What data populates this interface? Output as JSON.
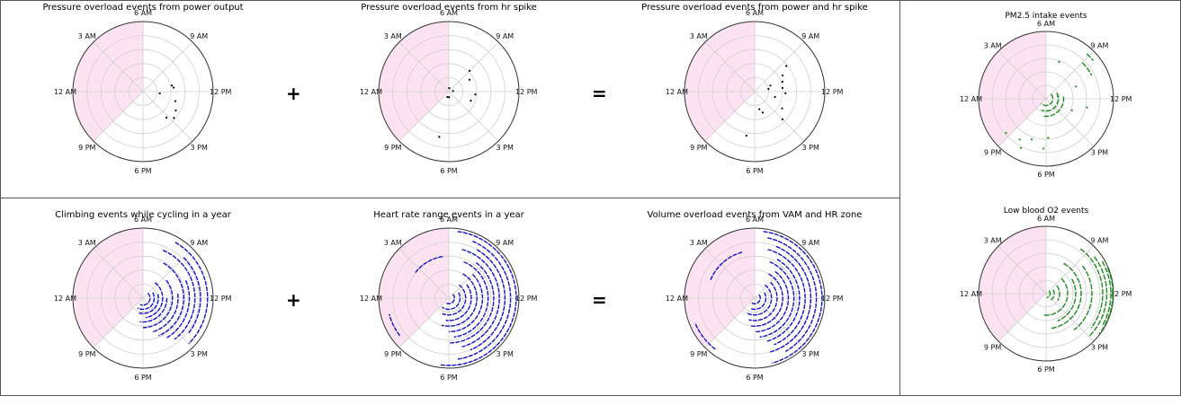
{
  "colors": {
    "shade": "#fde3f1",
    "grid": "#cfcfcf",
    "blackSeries": "#000000",
    "blueSeries": "#1010c8",
    "greenSeries": "#1f8a1f"
  },
  "operators": {
    "plus": "+",
    "equals": "="
  },
  "chart_data": [
    {
      "type": "scatter",
      "title": "Pressure overload events from power output",
      "angular_ticks": [
        "6 AM",
        "3 AM",
        "12 AM",
        "9 PM",
        "6 PM",
        "3 PM",
        "12 PM",
        "9 AM"
      ],
      "r_max": 5,
      "shaded_sector_hours": [
        21,
        30
      ],
      "color": "#000000",
      "points": [
        [
          11.2,
          2.1
        ],
        [
          11.5,
          2.2
        ],
        [
          14.0,
          2.7
        ],
        [
          14.7,
          2.9
        ],
        [
          15.2,
          2.5
        ],
        [
          13.1,
          2.4
        ],
        [
          12.4,
          1.2
        ]
      ]
    },
    {
      "type": "scatter",
      "title": "Pressure overload events from hr spike",
      "angular_ticks": [
        "6 AM",
        "3 AM",
        "12 AM",
        "9 PM",
        "6 PM",
        "3 PM",
        "12 PM",
        "9 AM"
      ],
      "r_max": 5,
      "shaded_sector_hours": [
        21,
        30
      ],
      "color": "#000000",
      "points": [
        [
          9.0,
          2.1
        ],
        [
          10.0,
          1.7
        ],
        [
          12.4,
          1.9
        ],
        [
          13.5,
          1.7
        ],
        [
          18.8,
          3.3
        ],
        [
          17.8,
          0.4
        ],
        [
          11.5,
          0.3
        ],
        [
          19.0,
          0.4
        ],
        [
          6.5,
          0.25
        ]
      ]
    },
    {
      "type": "scatter",
      "title": "Pressure overload events from power and hr spike",
      "angular_ticks": [
        "6 AM",
        "3 AM",
        "12 AM",
        "9 PM",
        "6 PM",
        "3 PM",
        "12 PM",
        "9 AM"
      ],
      "r_max": 5,
      "shaded_sector_hours": [
        21,
        30
      ],
      "color": "#000000",
      "points": [
        [
          9.4,
          2.9
        ],
        [
          10.0,
          2.3
        ],
        [
          10.7,
          2.1
        ],
        [
          11.5,
          2.0
        ],
        [
          12.2,
          2.2
        ],
        [
          13.0,
          1.5
        ],
        [
          14.1,
          2.3
        ],
        [
          15.0,
          2.8
        ],
        [
          16.6,
          1.6
        ],
        [
          17.0,
          1.3
        ],
        [
          18.7,
          3.2
        ],
        [
          11.3,
          1.0
        ],
        [
          10.6,
          1.2
        ]
      ]
    },
    {
      "type": "scatter",
      "title": "Climbing events while cycling in a year",
      "angular_ticks": [
        "6 AM",
        "3 AM",
        "12 AM",
        "9 PM",
        "6 PM",
        "3 PM",
        "12 PM",
        "9 AM"
      ],
      "r_max": 5,
      "shaded_sector_hours": [
        21,
        30
      ],
      "color": "#1010c8",
      "arcs": [
        [
          0.5,
          9.0,
          19.5
        ],
        [
          0.8,
          10.0,
          20.0
        ],
        [
          1.1,
          11.0,
          19.0
        ],
        [
          1.4,
          8.5,
          17.5
        ],
        [
          1.7,
          12.0,
          18.5
        ],
        [
          2.1,
          9.5,
          18.0
        ],
        [
          2.5,
          11.5,
          17.0
        ],
        [
          2.9,
          8.0,
          16.5
        ],
        [
          3.3,
          10.5,
          16.0
        ],
        [
          3.7,
          7.5,
          15.5
        ],
        [
          4.1,
          9.0,
          14.5
        ],
        [
          4.6,
          8.0,
          15.0
        ]
      ]
    },
    {
      "type": "scatter",
      "title": "Heart rate range events in a year",
      "angular_ticks": [
        "6 AM",
        "3 AM",
        "12 AM",
        "9 PM",
        "6 PM",
        "3 PM",
        "12 PM",
        "9 AM"
      ],
      "r_max": 5,
      "shaded_sector_hours": [
        21,
        30
      ],
      "color": "#1010c8",
      "arcs": [
        [
          0.4,
          9.0,
          20.0
        ],
        [
          0.8,
          10.0,
          20.5
        ],
        [
          1.2,
          8.5,
          19.5
        ],
        [
          1.6,
          9.5,
          18.5
        ],
        [
          2.0,
          8.0,
          19.0
        ],
        [
          2.4,
          9.0,
          18.0
        ],
        [
          2.8,
          7.5,
          17.5
        ],
        [
          3.2,
          8.5,
          18.0
        ],
        [
          3.6,
          7.0,
          17.0
        ],
        [
          4.0,
          8.0,
          16.5
        ],
        [
          4.4,
          7.5,
          17.5
        ],
        [
          4.8,
          6.5,
          18.5
        ],
        [
          3.0,
          2.5,
          5.5
        ],
        [
          4.4,
          21.5,
          23.0
        ]
      ]
    },
    {
      "type": "scatter",
      "title": "Volume overload events from VAM and HR zone",
      "angular_ticks": [
        "6 AM",
        "3 AM",
        "12 AM",
        "9 PM",
        "6 PM",
        "3 PM",
        "12 PM",
        "9 AM"
      ],
      "r_max": 5,
      "shaded_sector_hours": [
        21,
        30
      ],
      "color": "#1010c8",
      "arcs": [
        [
          0.4,
          9.5,
          20.0
        ],
        [
          0.8,
          10.0,
          19.5
        ],
        [
          1.2,
          8.5,
          20.0
        ],
        [
          1.6,
          9.0,
          19.0
        ],
        [
          2.0,
          8.0,
          18.5
        ],
        [
          2.4,
          8.5,
          18.0
        ],
        [
          2.8,
          7.5,
          17.5
        ],
        [
          3.2,
          8.0,
          17.0
        ],
        [
          3.6,
          7.0,
          16.5
        ],
        [
          4.0,
          7.5,
          17.0
        ],
        [
          4.4,
          6.8,
          16.0
        ],
        [
          4.8,
          6.5,
          17.0
        ],
        [
          3.4,
          1.5,
          5.0
        ],
        [
          4.6,
          20.5,
          22.5
        ]
      ]
    },
    {
      "type": "scatter",
      "title": "PM2.5 intake events",
      "angular_ticks": [
        "6 AM",
        "3 AM",
        "12 AM",
        "9 PM",
        "6 PM",
        "3 PM",
        "12 PM",
        "9 AM"
      ],
      "r_max": 5,
      "shaded_sector_hours": [
        21,
        30
      ],
      "color": "#1f8a1f",
      "arcs": [
        [
          0.5,
          9.0,
          21.0
        ],
        [
          0.9,
          10.0,
          19.5
        ],
        [
          1.3,
          11.5,
          18.5
        ],
        [
          3.8,
          9.0,
          10.2
        ],
        [
          4.5,
          8.8,
          9.4
        ]
      ],
      "points": [
        [
          10.5,
          2.4
        ],
        [
          12.8,
          3.1
        ],
        [
          13.6,
          2.1
        ],
        [
          17.8,
          2.9
        ],
        [
          18.2,
          3.7
        ],
        [
          19.3,
          3.2
        ],
        [
          19.8,
          4.1
        ],
        [
          20.2,
          3.6
        ],
        [
          21.3,
          3.9
        ],
        [
          7.3,
          2.9
        ],
        [
          11.2,
          0.9
        ]
      ]
    },
    {
      "type": "scatter",
      "title": "Low blood O2 events",
      "angular_ticks": [
        "6 AM",
        "3 AM",
        "12 AM",
        "9 PM",
        "6 PM",
        "3 PM",
        "12 PM",
        "9 AM"
      ],
      "r_max": 5,
      "shaded_sector_hours": [
        21,
        30
      ],
      "color": "#1f8a1f",
      "arcs": [
        [
          0.3,
          9.0,
          17.5
        ],
        [
          0.6,
          10.0,
          15.5
        ],
        [
          1.0,
          9.5,
          14.0
        ],
        [
          1.6,
          9.0,
          18.5
        ],
        [
          2.2,
          10.0,
          16.5
        ],
        [
          2.6,
          8.0,
          17.5
        ],
        [
          3.4,
          9.5,
          15.5
        ],
        [
          4.2,
          8.5,
          14.5
        ],
        [
          4.5,
          9.5,
          15.0
        ],
        [
          4.8,
          10.0,
          14.0
        ],
        [
          4.95,
          10.5,
          14.5
        ]
      ]
    }
  ]
}
